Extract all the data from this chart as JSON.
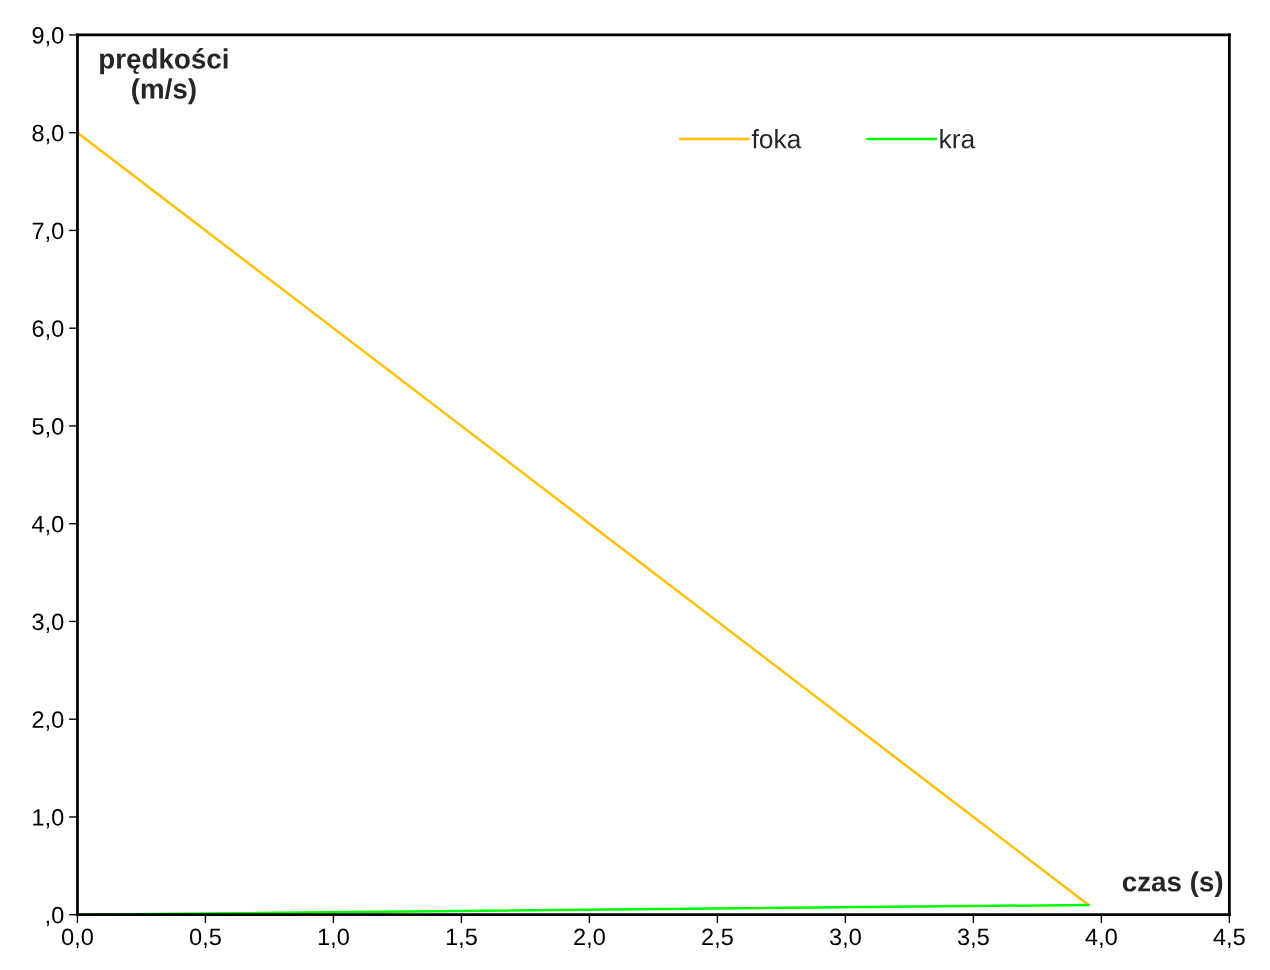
{
  "chart_data": {
    "type": "line",
    "xlabel": "czas (s)",
    "ylabel": "prędkości\n(m/s)",
    "xlim": [
      0,
      4.5
    ],
    "ylim": [
      0,
      9
    ],
    "xticks": [
      {
        "value": 0,
        "label": "0,0"
      },
      {
        "value": 0.5,
        "label": "0,5"
      },
      {
        "value": 1,
        "label": "1,0"
      },
      {
        "value": 1.5,
        "label": "1,5"
      },
      {
        "value": 2,
        "label": "2,0"
      },
      {
        "value": 2.5,
        "label": "2,5"
      },
      {
        "value": 3,
        "label": "3,0"
      },
      {
        "value": 3.5,
        "label": "3,5"
      },
      {
        "value": 4,
        "label": "4,0"
      },
      {
        "value": 4.5,
        "label": "4,5"
      }
    ],
    "yticks": [
      {
        "value": 0,
        "label": ",0"
      },
      {
        "value": 1,
        "label": "1,0"
      },
      {
        "value": 2,
        "label": "2,0"
      },
      {
        "value": 3,
        "label": "3,0"
      },
      {
        "value": 4,
        "label": "4,0"
      },
      {
        "value": 5,
        "label": "5,0"
      },
      {
        "value": 6,
        "label": "6,0"
      },
      {
        "value": 7,
        "label": "7,0"
      },
      {
        "value": 8,
        "label": "8,0"
      },
      {
        "value": 9,
        "label": "9,0"
      }
    ],
    "x": [
      0,
      3.95
    ],
    "series": [
      {
        "name": "foka",
        "color": "#ffc000",
        "values": [
          8,
          0.1
        ]
      },
      {
        "name": "kra",
        "color": "#00ff00",
        "values": [
          0,
          0.1
        ]
      }
    ],
    "legend": "top right",
    "grid": false,
    "marker": "none",
    "line_style": "solid"
  }
}
